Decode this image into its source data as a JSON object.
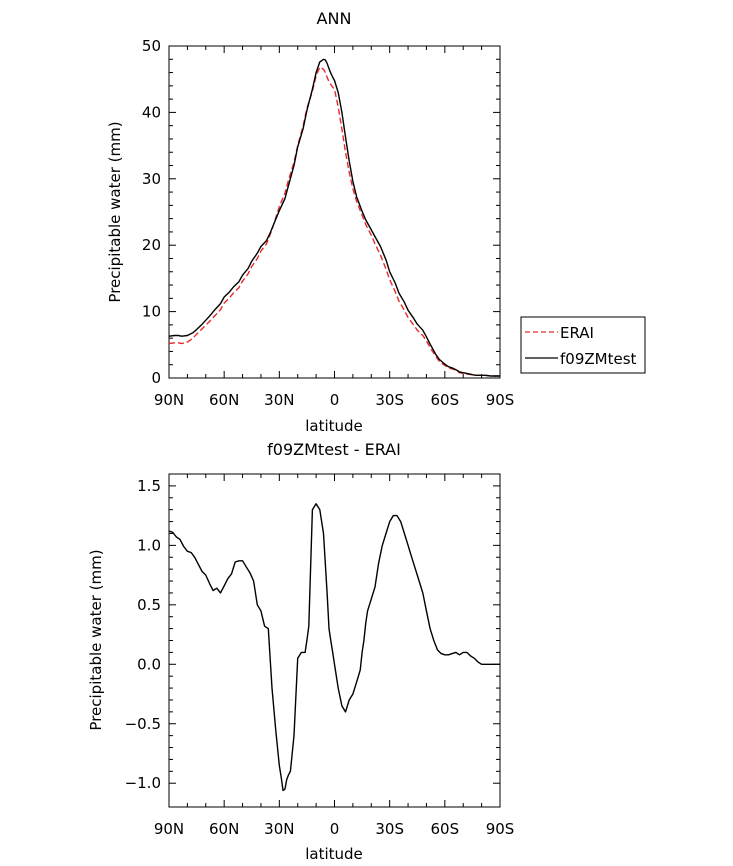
{
  "chart_data": [
    {
      "type": "line",
      "title": "ANN",
      "xlabel": "latitude",
      "ylabel": "Precipitable water (mm)",
      "xlim": [
        90,
        -90
      ],
      "ylim": [
        0,
        50
      ],
      "x_ticks": [
        90,
        60,
        30,
        0,
        -30,
        -60,
        -90
      ],
      "x_tick_labels": [
        "90N",
        "60N",
        "30N",
        "0",
        "30S",
        "60S",
        "90S"
      ],
      "y_ticks": [
        0,
        10,
        20,
        30,
        40,
        50
      ],
      "y_tick_labels": [
        "0",
        "10",
        "20",
        "30",
        "40",
        "50"
      ],
      "grid": false,
      "legend": {
        "position": "right",
        "entries": [
          {
            "label": "ERAI",
            "color": "#e8292a",
            "dash": "dashed"
          },
          {
            "label": "f09ZMtest",
            "color": "#000000",
            "dash": "solid"
          }
        ]
      },
      "series": [
        {
          "name": "ERAI",
          "color": "#e8292a",
          "style": "dashed",
          "x": [
            90,
            87,
            85,
            83,
            80,
            77,
            75,
            72,
            70,
            68,
            65,
            62,
            60,
            57,
            55,
            52,
            50,
            47,
            45,
            42,
            40,
            37,
            35,
            33,
            30,
            27,
            25,
            22,
            20,
            17,
            15,
            12,
            10,
            8,
            6,
            5,
            4,
            3,
            2,
            1,
            0,
            -2,
            -4,
            -6,
            -8,
            -10,
            -12,
            -15,
            -17,
            -20,
            -22,
            -25,
            -28,
            -30,
            -33,
            -35,
            -38,
            -40,
            -43,
            -45,
            -48,
            -50,
            -52,
            -55,
            -57,
            -60,
            -62,
            -65,
            -67,
            -68,
            -70,
            -72,
            -75,
            -77,
            -80,
            -82,
            -85,
            -87,
            -90
          ],
          "y": [
            5.2,
            5.3,
            5.3,
            5.2,
            5.4,
            6.0,
            6.6,
            7.4,
            8.0,
            8.5,
            9.4,
            10.3,
            11.3,
            12.1,
            12.8,
            13.6,
            14.6,
            15.7,
            16.8,
            18.0,
            19.1,
            20.2,
            21.6,
            23.2,
            25.8,
            27.8,
            29.8,
            32.5,
            35.0,
            38.0,
            40.6,
            43.2,
            45.5,
            46.8,
            46.5,
            46.0,
            45.3,
            44.6,
            44.2,
            43.8,
            43.5,
            40.8,
            37.5,
            34.0,
            31.0,
            28.5,
            26.6,
            24.5,
            23.1,
            21.5,
            20.2,
            18.5,
            16.4,
            14.8,
            13.0,
            11.6,
            10.2,
            9.1,
            8.0,
            7.2,
            6.4,
            5.6,
            4.6,
            3.3,
            2.5,
            1.9,
            1.5,
            1.3,
            1.0,
            0.8,
            0.7,
            0.6,
            0.5,
            0.4,
            0.4,
            0.4,
            0.3,
            0.3,
            0.3
          ]
        },
        {
          "name": "f09ZMtest",
          "color": "#000000",
          "style": "solid",
          "x": [
            90,
            87,
            85,
            83,
            80,
            77,
            75,
            72,
            70,
            68,
            65,
            62,
            60,
            57,
            55,
            52,
            50,
            47,
            45,
            42,
            40,
            37,
            35,
            33,
            30,
            27,
            25,
            22,
            20,
            17,
            15,
            12,
            10,
            8,
            6,
            5,
            4,
            3,
            2,
            1,
            0,
            -2,
            -4,
            -6,
            -8,
            -10,
            -12,
            -15,
            -17,
            -20,
            -22,
            -25,
            -28,
            -30,
            -33,
            -35,
            -38,
            -40,
            -43,
            -45,
            -48,
            -50,
            -52,
            -55,
            -57,
            -60,
            -62,
            -65,
            -67,
            -68,
            -70,
            -72,
            -75,
            -77,
            -80,
            -82,
            -85,
            -87,
            -90
          ],
          "y": [
            6.3,
            6.4,
            6.4,
            6.3,
            6.4,
            6.8,
            7.3,
            8.1,
            8.7,
            9.3,
            10.3,
            11.2,
            12.2,
            13.0,
            13.7,
            14.5,
            15.5,
            16.5,
            17.6,
            18.8,
            19.8,
            20.7,
            21.8,
            23.2,
            25.2,
            27.0,
            29.0,
            32.0,
            34.8,
            37.6,
            40.3,
            43.5,
            46.0,
            47.6,
            48.0,
            47.9,
            47.4,
            46.6,
            45.9,
            45.3,
            44.8,
            43.0,
            40.0,
            36.3,
            32.7,
            29.6,
            27.3,
            25.1,
            23.8,
            22.3,
            21.3,
            19.8,
            17.8,
            16.0,
            14.3,
            12.8,
            11.4,
            10.2,
            9.0,
            8.1,
            7.2,
            6.2,
            5.1,
            3.6,
            2.8,
            2.1,
            1.7,
            1.4,
            1.1,
            0.9,
            0.8,
            0.7,
            0.5,
            0.4,
            0.4,
            0.4,
            0.3,
            0.3,
            0.3
          ]
        }
      ]
    },
    {
      "type": "line",
      "title": "f09ZMtest - ERAI",
      "xlabel": "latitude",
      "ylabel": "Precipitable water (mm)",
      "xlim": [
        90,
        -90
      ],
      "ylim": [
        -1.2,
        1.6
      ],
      "x_ticks": [
        90,
        60,
        30,
        0,
        -30,
        -60,
        -90
      ],
      "x_tick_labels": [
        "90N",
        "60N",
        "30N",
        "0",
        "30S",
        "60S",
        "90S"
      ],
      "y_ticks": [
        -1.0,
        -0.5,
        0.0,
        0.5,
        1.0,
        1.5
      ],
      "y_tick_labels": [
        "−1.0",
        "−0.5",
        "0.0",
        "0.5",
        "1.0",
        "1.5"
      ],
      "grid": false,
      "series": [
        {
          "name": "",
          "color": "#000000",
          "style": "solid",
          "x": [
            90,
            88,
            86,
            84,
            82,
            80,
            78,
            76,
            74,
            72,
            70,
            68,
            66,
            64,
            62,
            60,
            58,
            56,
            54,
            52,
            50,
            48,
            46,
            44,
            42,
            40,
            38,
            36,
            34,
            32,
            30,
            29,
            28,
            27,
            26,
            25,
            24,
            22,
            20,
            18,
            16,
            15,
            14,
            12,
            10,
            8,
            6,
            4,
            3,
            2,
            1,
            0,
            -2,
            -4,
            -6,
            -8,
            -10,
            -12,
            -14,
            -15,
            -16,
            -17,
            -18,
            -20,
            -22,
            -24,
            -26,
            -28,
            -30,
            -32,
            -34,
            -36,
            -38,
            -40,
            -42,
            -44,
            -46,
            -48,
            -50,
            -52,
            -54,
            -56,
            -58,
            -60,
            -62,
            -64,
            -66,
            -68,
            -70,
            -72,
            -74,
            -76,
            -78,
            -80,
            -82,
            -84,
            -86,
            -88,
            -90
          ],
          "y": [
            1.12,
            1.11,
            1.07,
            1.05,
            0.99,
            0.95,
            0.94,
            0.9,
            0.84,
            0.78,
            0.75,
            0.68,
            0.62,
            0.64,
            0.6,
            0.66,
            0.72,
            0.76,
            0.86,
            0.87,
            0.87,
            0.82,
            0.77,
            0.7,
            0.5,
            0.45,
            0.32,
            0.3,
            -0.2,
            -0.55,
            -0.85,
            -0.95,
            -1.06,
            -1.05,
            -0.97,
            -0.93,
            -0.9,
            -0.6,
            0.05,
            0.1,
            0.1,
            0.2,
            0.32,
            1.3,
            1.35,
            1.3,
            1.1,
            0.6,
            0.3,
            0.2,
            0.1,
            0.0,
            -0.2,
            -0.35,
            -0.4,
            -0.3,
            -0.25,
            -0.15,
            -0.05,
            0.1,
            0.2,
            0.35,
            0.45,
            0.55,
            0.65,
            0.85,
            1.0,
            1.1,
            1.2,
            1.25,
            1.25,
            1.2,
            1.1,
            1.0,
            0.9,
            0.8,
            0.7,
            0.6,
            0.45,
            0.3,
            0.2,
            0.12,
            0.09,
            0.08,
            0.08,
            0.09,
            0.1,
            0.08,
            0.1,
            0.1,
            0.07,
            0.05,
            0.02,
            0.0,
            0.0,
            0.0,
            0.0,
            0.0,
            0.0
          ]
        }
      ]
    }
  ]
}
